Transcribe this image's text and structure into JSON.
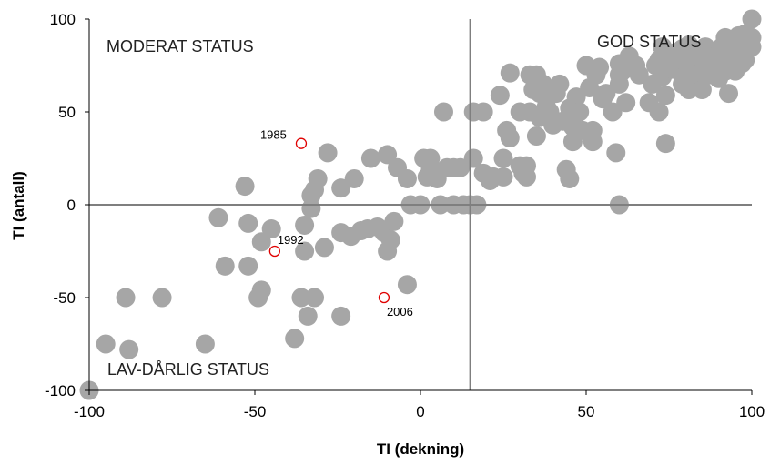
{
  "chart_data": {
    "type": "scatter",
    "title": "",
    "xlabel": "TI (dekning)",
    "ylabel": "TI (antall)",
    "xlim": [
      -100,
      100
    ],
    "ylim": [
      -100,
      100
    ],
    "xticks": [
      -100,
      -50,
      0,
      50,
      100
    ],
    "yticks": [
      -100,
      -50,
      0,
      50,
      100
    ],
    "grid": false,
    "reference_lines": {
      "x": 15,
      "y": 0
    },
    "region_labels": {
      "moderate": "MODERAT STATUS",
      "good": "GOD STATUS",
      "low": "LAV-DÅRLIG STATUS"
    },
    "colors": {
      "points": "#a6a6a6",
      "highlight": "#e00000",
      "ref_line": "#7f7f7f",
      "axis": "#000000"
    },
    "series": [
      {
        "points": [
          [
            -100,
            -100
          ],
          [
            -95,
            -75
          ],
          [
            -88,
            -78
          ],
          [
            -89,
            -50
          ],
          [
            -78,
            -50
          ],
          [
            -65,
            -75
          ],
          [
            -61,
            -7
          ],
          [
            -59,
            -33
          ],
          [
            -53,
            10
          ],
          [
            -52,
            -10
          ],
          [
            -52,
            -33
          ],
          [
            -49,
            -50
          ],
          [
            -48,
            -46
          ],
          [
            -48,
            -20
          ],
          [
            -45,
            -13
          ],
          [
            -38,
            -72
          ],
          [
            -36,
            -50
          ],
          [
            -35,
            -25
          ],
          [
            -35,
            -11
          ],
          [
            -34,
            -60
          ],
          [
            -33,
            -2
          ],
          [
            -33,
            5
          ],
          [
            -32,
            -50
          ],
          [
            -32,
            8
          ],
          [
            -31,
            14
          ],
          [
            -29,
            -23
          ],
          [
            -28,
            28
          ],
          [
            -24,
            9
          ],
          [
            -24,
            -60
          ],
          [
            -24,
            -15
          ],
          [
            -21,
            -17
          ],
          [
            -20,
            14
          ],
          [
            -18,
            -14
          ],
          [
            -16,
            -13
          ],
          [
            -15,
            25
          ],
          [
            -13,
            -12
          ],
          [
            -11,
            -15
          ],
          [
            -10,
            -25
          ],
          [
            -10,
            27
          ],
          [
            -9,
            -19
          ],
          [
            -8,
            -9
          ],
          [
            -7,
            20
          ],
          [
            -4,
            -43
          ],
          [
            -4,
            14
          ],
          [
            -3,
            0
          ],
          [
            0,
            0
          ],
          [
            1,
            25
          ],
          [
            2,
            15
          ],
          [
            3,
            20
          ],
          [
            3,
            25
          ],
          [
            5,
            14
          ],
          [
            6,
            0
          ],
          [
            7,
            50
          ],
          [
            8,
            20
          ],
          [
            10,
            0
          ],
          [
            10,
            20
          ],
          [
            12,
            20
          ],
          [
            13,
            0
          ],
          [
            15,
            0
          ],
          [
            16,
            50
          ],
          [
            16,
            25
          ],
          [
            17,
            0
          ],
          [
            19,
            50
          ],
          [
            19,
            17
          ],
          [
            21,
            13
          ],
          [
            22,
            15
          ],
          [
            24,
            59
          ],
          [
            25,
            15
          ],
          [
            25,
            25
          ],
          [
            26,
            40
          ],
          [
            27,
            36
          ],
          [
            27,
            71
          ],
          [
            30,
            21
          ],
          [
            30,
            50
          ],
          [
            31,
            17
          ],
          [
            32,
            15
          ],
          [
            32,
            21
          ],
          [
            33,
            50
          ],
          [
            33,
            70
          ],
          [
            34,
            62
          ],
          [
            35,
            70
          ],
          [
            35,
            37
          ],
          [
            36,
            47
          ],
          [
            36,
            60
          ],
          [
            37,
            65
          ],
          [
            38,
            53
          ],
          [
            39,
            50
          ],
          [
            40,
            43
          ],
          [
            41,
            60
          ],
          [
            42,
            65
          ],
          [
            43,
            45
          ],
          [
            44,
            19
          ],
          [
            45,
            52
          ],
          [
            45,
            14
          ],
          [
            46,
            42
          ],
          [
            46,
            34
          ],
          [
            47,
            58
          ],
          [
            48,
            50
          ],
          [
            49,
            40
          ],
          [
            50,
            75
          ],
          [
            51,
            63
          ],
          [
            52,
            40
          ],
          [
            52,
            34
          ],
          [
            53,
            70
          ],
          [
            54,
            74
          ],
          [
            55,
            57
          ],
          [
            56,
            60
          ],
          [
            58,
            50
          ],
          [
            59,
            28
          ],
          [
            60,
            70
          ],
          [
            60,
            0
          ],
          [
            60,
            65
          ],
          [
            60,
            76
          ],
          [
            61,
            72
          ],
          [
            62,
            55
          ],
          [
            63,
            80
          ],
          [
            65,
            75
          ],
          [
            66,
            70
          ],
          [
            69,
            55
          ],
          [
            70,
            65
          ],
          [
            71,
            75
          ],
          [
            72,
            50
          ],
          [
            72,
            78
          ],
          [
            73,
            85
          ],
          [
            73,
            69
          ],
          [
            74,
            33
          ],
          [
            74,
            59
          ],
          [
            75,
            80
          ],
          [
            75,
            76
          ],
          [
            76,
            73
          ],
          [
            77,
            82
          ],
          [
            78,
            72
          ],
          [
            79,
            65
          ],
          [
            79,
            84
          ],
          [
            80,
            78
          ],
          [
            80,
            70
          ],
          [
            81,
            86
          ],
          [
            81,
            62
          ],
          [
            82,
            67
          ],
          [
            83,
            80
          ],
          [
            84,
            75
          ],
          [
            85,
            72
          ],
          [
            85,
            62
          ],
          [
            86,
            85
          ],
          [
            87,
            78
          ],
          [
            88,
            70
          ],
          [
            89,
            80
          ],
          [
            90,
            75
          ],
          [
            90,
            68
          ],
          [
            91,
            85
          ],
          [
            92,
            72
          ],
          [
            92,
            90
          ],
          [
            93,
            60
          ],
          [
            94,
            80
          ],
          [
            95,
            88
          ],
          [
            95,
            72
          ],
          [
            96,
            84
          ],
          [
            96,
            91
          ],
          [
            97,
            76
          ],
          [
            98,
            92
          ],
          [
            98,
            78
          ],
          [
            99,
            88
          ],
          [
            100,
            100
          ],
          [
            100,
            85
          ],
          [
            100,
            90
          ]
        ]
      }
    ],
    "highlighted": [
      {
        "x": -36,
        "y": 33,
        "label": "1985"
      },
      {
        "x": -44,
        "y": -25,
        "label": "1992"
      },
      {
        "x": -11,
        "y": -50,
        "label": "2006"
      }
    ]
  }
}
